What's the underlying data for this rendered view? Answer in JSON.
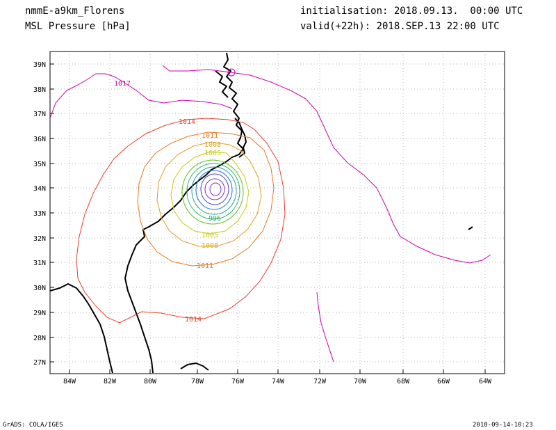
{
  "header": {
    "model": "nmmE-a9km_Florens",
    "field": "MSL Pressure [hPa]",
    "init": "initialisation: 2018.09.13.  00:00 UTC",
    "valid": "valid(+22h): 2018.SEP.13 22:00 UTC"
  },
  "footer": {
    "left": "GrADS: COLA/IGES",
    "right": "2018-09-14-10:23"
  },
  "axes": {
    "lat_labels": [
      "39N",
      "38N",
      "37N",
      "36N",
      "35N",
      "34N",
      "33N",
      "32N",
      "31N",
      "30N",
      "29N",
      "28N",
      "27N"
    ],
    "lon_labels": [
      "84W",
      "82W",
      "80W",
      "78W",
      "76W",
      "74W",
      "72W",
      "70W",
      "68W",
      "66W",
      "64W"
    ]
  },
  "contour_labels": {
    "c1017": "1017",
    "c1014a": "1014",
    "c1014b": "1014",
    "c1011a": "1011",
    "c1011b": "1011",
    "c1008a": "1008",
    "c1008b": "1008",
    "c1005a": "1005",
    "c1005b": "1005",
    "c996": "996"
  },
  "colors": {
    "c1017": "#cc00aa",
    "c1014": "#e8402a",
    "c1011": "#e8781a",
    "c1008": "#e0a020",
    "c1005": "#c8c818",
    "c1002": "#60c020",
    "c999": "#20b060",
    "c996": "#20a0a0",
    "c993": "#2070d0",
    "c990": "#4040d0",
    "c987": "#8030c0",
    "coast": "#000000"
  }
}
